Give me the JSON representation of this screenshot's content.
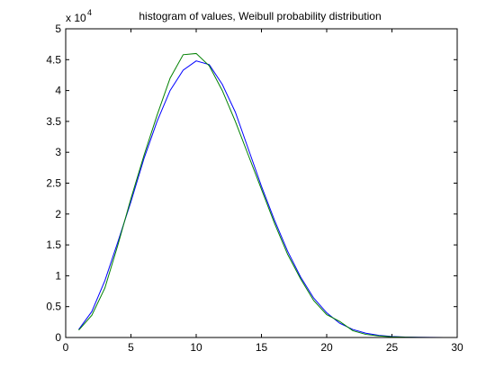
{
  "chart_data": {
    "type": "line",
    "title": "histogram of values, Weibull probability distribution",
    "xlabel": "",
    "ylabel": "",
    "xlim": [
      0,
      30
    ],
    "ylim": [
      0,
      50000
    ],
    "x_ticks": [
      0,
      5,
      10,
      15,
      20,
      25,
      30
    ],
    "y_ticks": [
      0,
      5000,
      10000,
      15000,
      20000,
      25000,
      30000,
      35000,
      40000,
      45000,
      50000
    ],
    "x_tick_labels": [
      "0",
      "5",
      "10",
      "15",
      "20",
      "25",
      "30"
    ],
    "y_tick_labels": [
      "0",
      "0.5",
      "1",
      "1.5",
      "2",
      "2.5",
      "3",
      "3.5",
      "4",
      "4.5",
      "5"
    ],
    "y_exponent_base": "x 10",
    "y_exponent_power": "4",
    "grid": false,
    "legend": "none",
    "x": [
      1,
      2,
      3,
      4,
      5,
      6,
      7,
      8,
      9,
      10,
      11,
      12,
      13,
      14,
      15,
      16,
      17,
      18,
      19,
      20,
      21,
      22,
      23,
      24,
      25,
      26,
      27,
      28,
      29
    ],
    "series": [
      {
        "color": "#0000ff",
        "values": [
          1300,
          4200,
          9200,
          15500,
          22000,
          29000,
          35000,
          40000,
          43300,
          44800,
          44200,
          41000,
          36500,
          30500,
          24500,
          19000,
          14000,
          9800,
          6400,
          4000,
          2300,
          1300,
          700,
          350,
          160,
          70,
          30,
          10,
          5
        ]
      },
      {
        "color": "#008000",
        "values": [
          1200,
          3600,
          8000,
          15000,
          22500,
          29500,
          36000,
          42000,
          45800,
          46000,
          44000,
          40000,
          35000,
          29500,
          24000,
          18500,
          13500,
          9500,
          6000,
          3700,
          2600,
          1100,
          500,
          250,
          110,
          50,
          20,
          8,
          3
        ]
      }
    ]
  }
}
